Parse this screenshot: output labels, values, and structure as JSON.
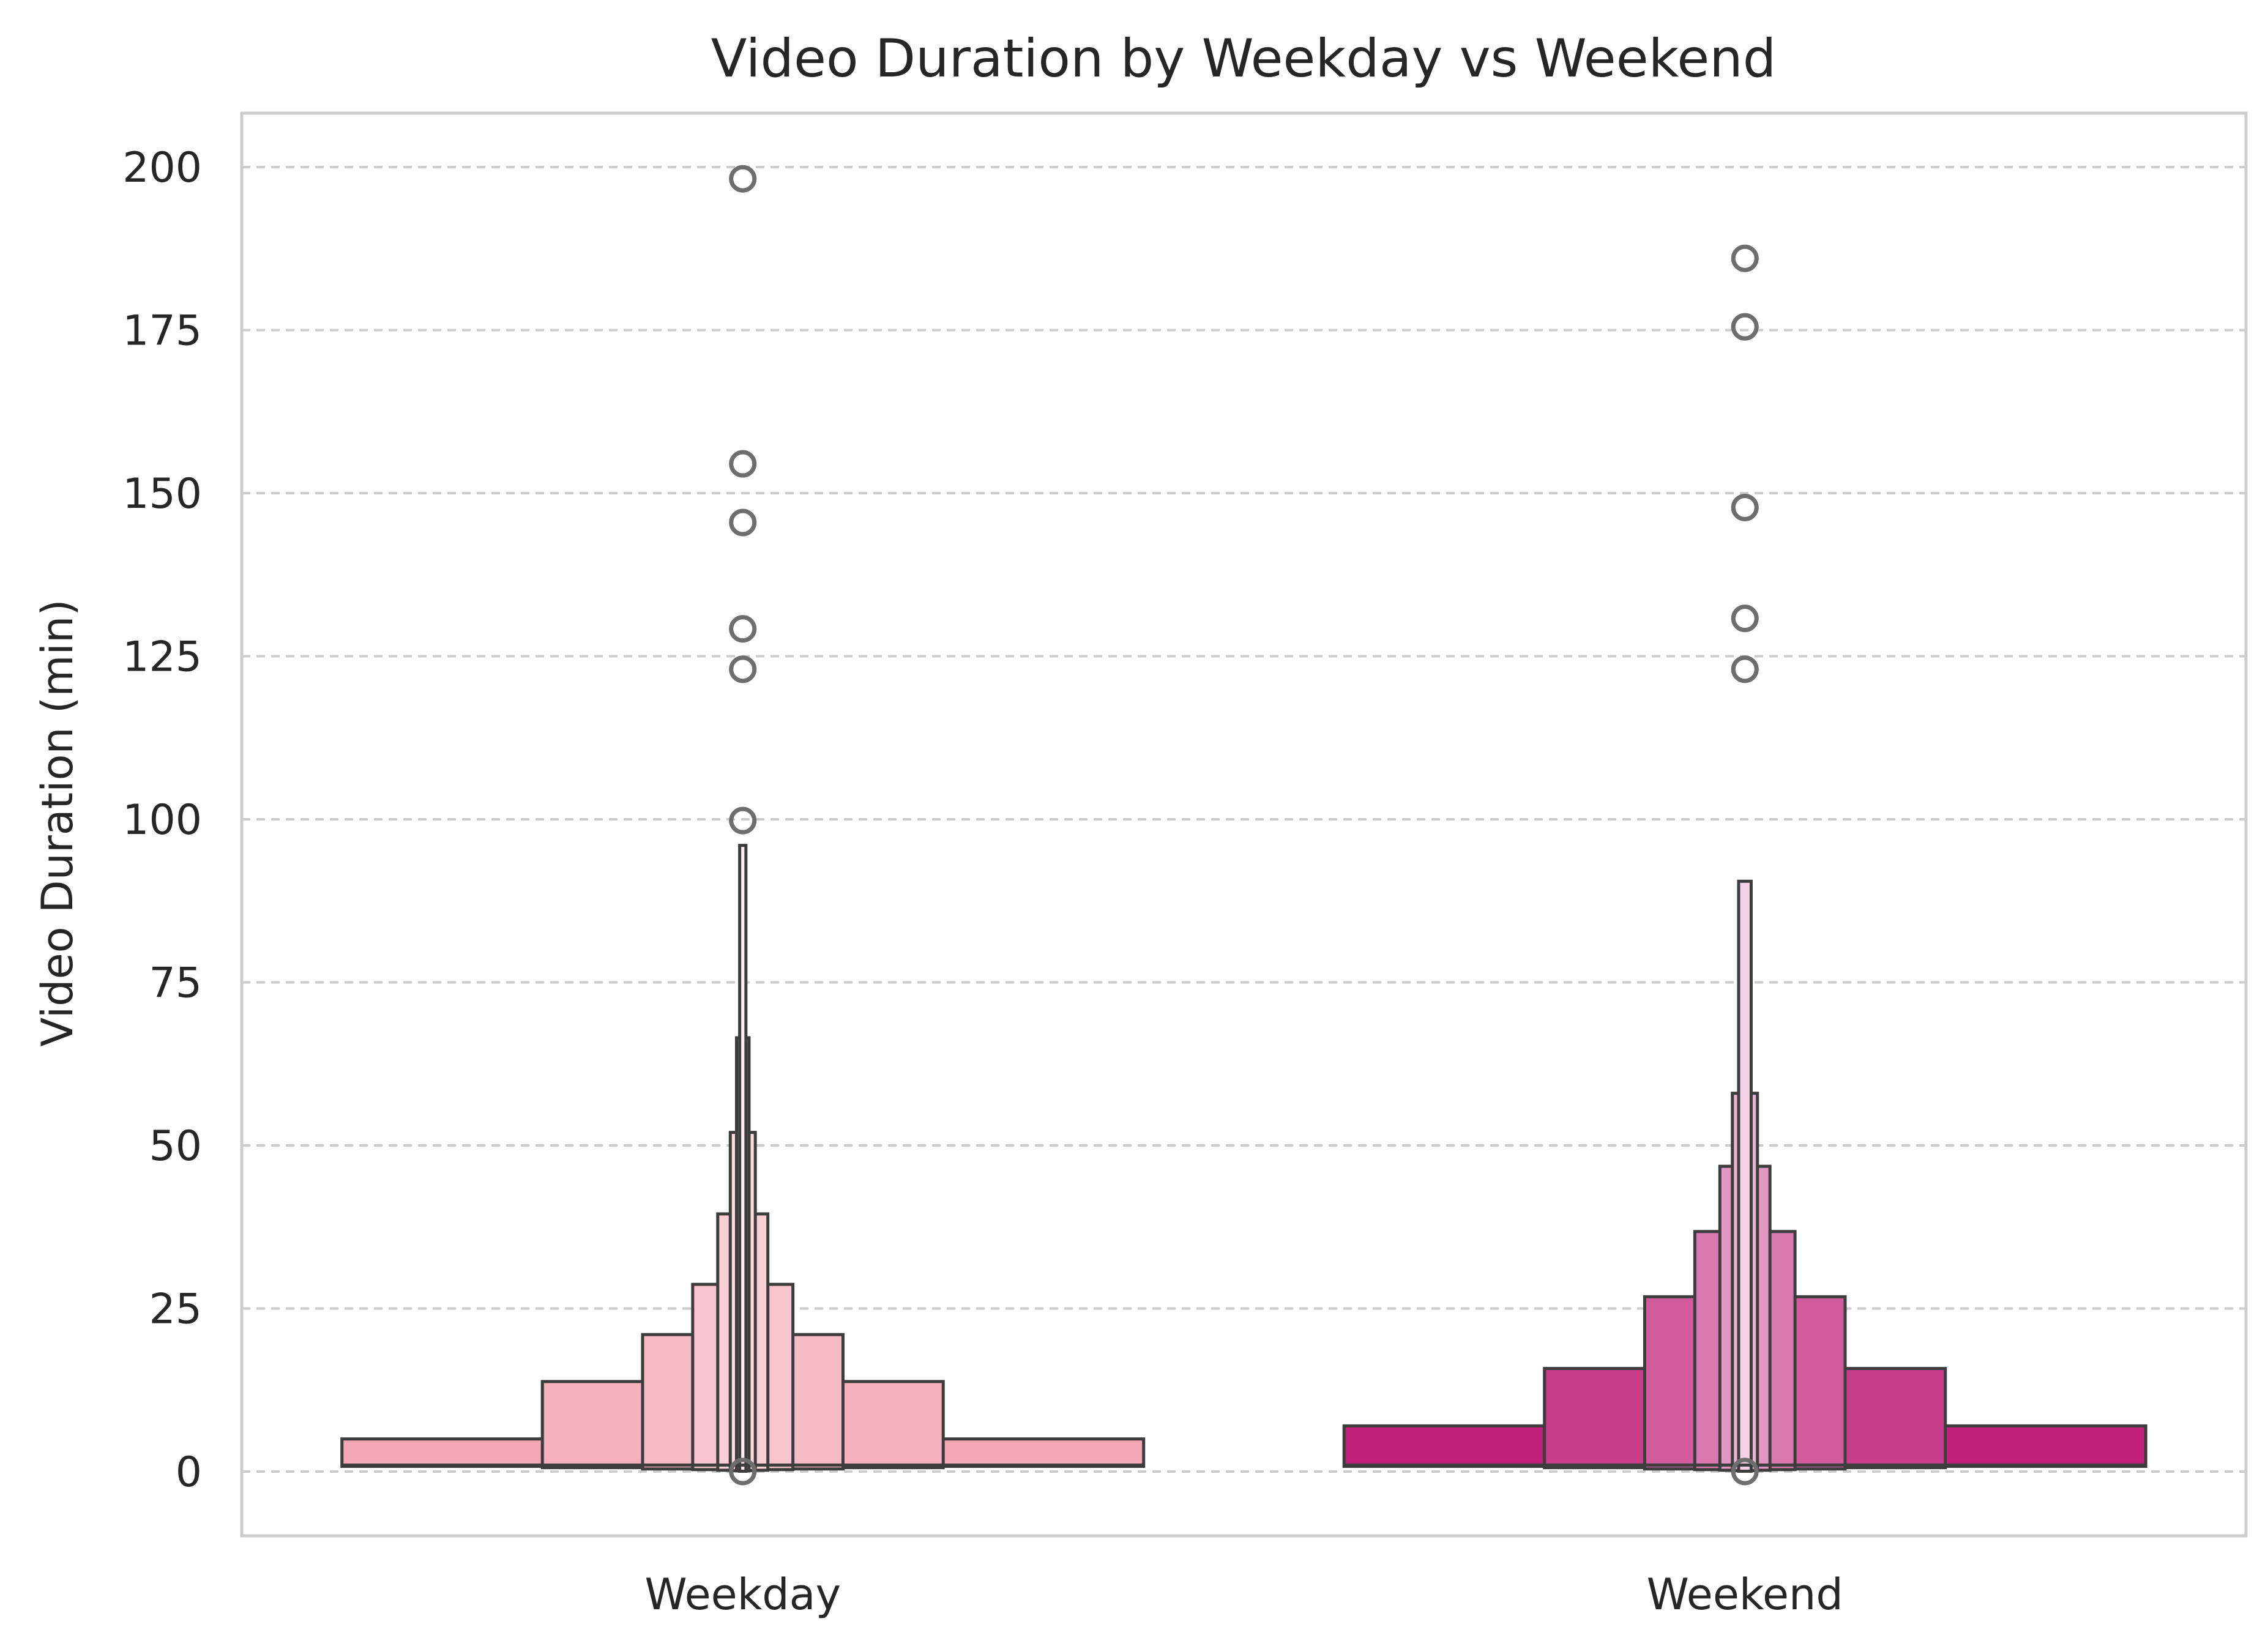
{
  "chart_data": {
    "type": "boxenplot",
    "title": "Video Duration by Weekday vs Weekend",
    "xlabel": "",
    "ylabel": "Video Duration (min)",
    "ylim": [
      -10,
      208
    ],
    "yticks": [
      0,
      25,
      50,
      75,
      100,
      125,
      150,
      175,
      200
    ],
    "grid": "y-dashed",
    "categories": [
      "Weekday",
      "Weekend"
    ],
    "series": [
      {
        "category": "Weekday",
        "color": "#f4a7b5",
        "boxes": [
          {
            "low": 0.8,
            "high": 5
          },
          {
            "low": 0.6,
            "high": 13.8
          },
          {
            "low": 0.4,
            "high": 21
          },
          {
            "low": 0.3,
            "high": 28.7
          },
          {
            "low": 0.2,
            "high": 39.5
          },
          {
            "low": 0.15,
            "high": 52
          },
          {
            "low": 0.1,
            "high": 66.5
          },
          {
            "low": 0.05,
            "high": 96
          }
        ],
        "median": 1,
        "outliers": [
          198.2,
          154.5,
          145.5,
          129.2,
          123,
          99.8,
          0
        ]
      },
      {
        "category": "Weekend",
        "color": "#c0207a",
        "boxes": [
          {
            "low": 0.8,
            "high": 7
          },
          {
            "low": 0.6,
            "high": 15.8
          },
          {
            "low": 0.4,
            "high": 26.8
          },
          {
            "low": 0.3,
            "high": 36.8
          },
          {
            "low": 0.2,
            "high": 46.8
          },
          {
            "low": 0.15,
            "high": 58
          },
          {
            "low": 0.05,
            "high": 90.5
          }
        ],
        "median": 1,
        "outliers": [
          186,
          175.5,
          147.8,
          130.8,
          123,
          0
        ]
      }
    ]
  }
}
